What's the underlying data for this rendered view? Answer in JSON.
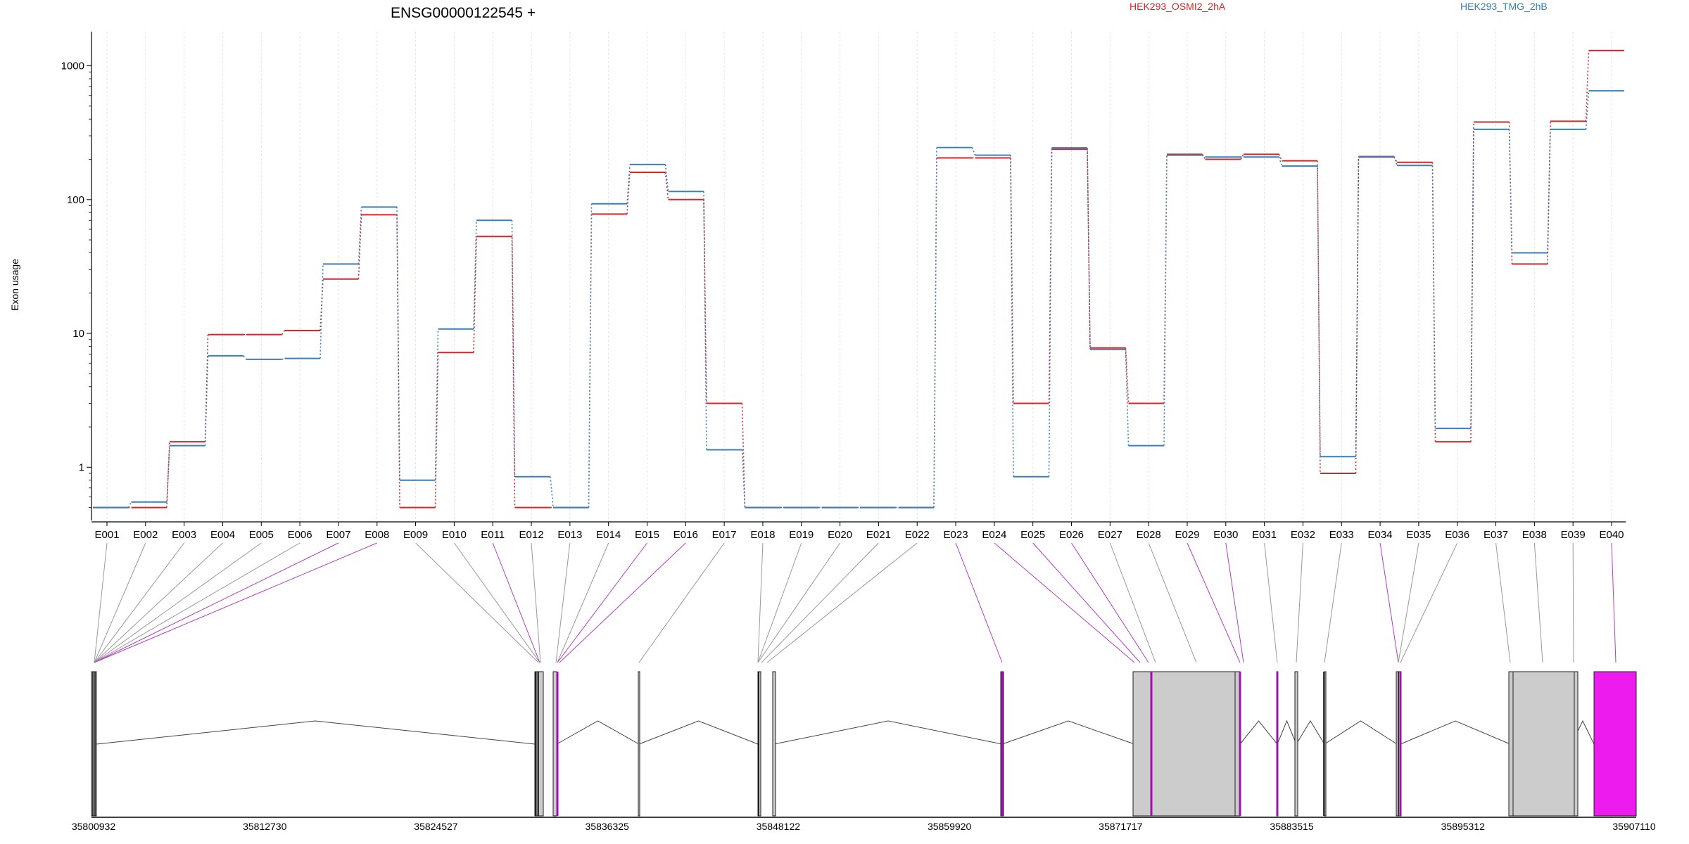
{
  "title": "ENSG00000122545 +",
  "legend": [
    {
      "name": "HEK293_OSMI2_2hA",
      "color": "#d62728"
    },
    {
      "name": "HEK293_TMG_2hB",
      "color": "#3b7fb8"
    }
  ],
  "chart_data": {
    "type": "line",
    "title": "ENSG00000122545 +",
    "ylabel": "Exon usage",
    "yscale": "log",
    "ylim": [
      0.4,
      1800
    ],
    "yticks": [
      "1",
      "10",
      "100",
      "1000"
    ],
    "grid": true,
    "legend_position": "top",
    "categories": [
      "E001",
      "E002",
      "E003",
      "E004",
      "E005",
      "E006",
      "E007",
      "E008",
      "E009",
      "E010",
      "E011",
      "E012",
      "E013",
      "E014",
      "E015",
      "E016",
      "E017",
      "E018",
      "E019",
      "E020",
      "E021",
      "E022",
      "E023",
      "E024",
      "E025",
      "E026",
      "E027",
      "E028",
      "E029",
      "E030",
      "E031",
      "E032",
      "E033",
      "E034",
      "E035",
      "E036",
      "E037",
      "E038",
      "E039",
      "E040"
    ],
    "series": [
      {
        "name": "HEK293_OSMI2_2hA",
        "color": "#d62728",
        "values": [
          0.5,
          0.5,
          1.55,
          9.8,
          9.8,
          10.5,
          25.5,
          77,
          0.5,
          7.2,
          53,
          0.5,
          0.5,
          78,
          160,
          100,
          3.0,
          0.5,
          0.5,
          0.5,
          0.5,
          0.5,
          205,
          205,
          3.0,
          238,
          7.8,
          3.0,
          218,
          200,
          218,
          195,
          0.9,
          208,
          190,
          1.55,
          380,
          33,
          385,
          1300
        ]
      },
      {
        "name": "HEK293_TMG_2hB",
        "color": "#3b7fb8",
        "values": [
          0.5,
          0.55,
          1.45,
          6.8,
          6.4,
          6.5,
          33,
          88,
          0.8,
          10.8,
          70,
          0.85,
          0.5,
          93,
          183,
          115,
          1.35,
          0.5,
          0.5,
          0.5,
          0.5,
          0.5,
          245,
          215,
          0.85,
          244,
          7.6,
          1.45,
          215,
          208,
          208,
          178,
          1.2,
          210,
          180,
          1.95,
          335,
          40,
          335,
          650
        ]
      }
    ],
    "genomic_axis": {
      "ticks": [
        "35800932",
        "35812730",
        "35824527",
        "35836325",
        "35848122",
        "35859920",
        "35871717",
        "35883515",
        "35895312",
        "35907110"
      ]
    }
  }
}
